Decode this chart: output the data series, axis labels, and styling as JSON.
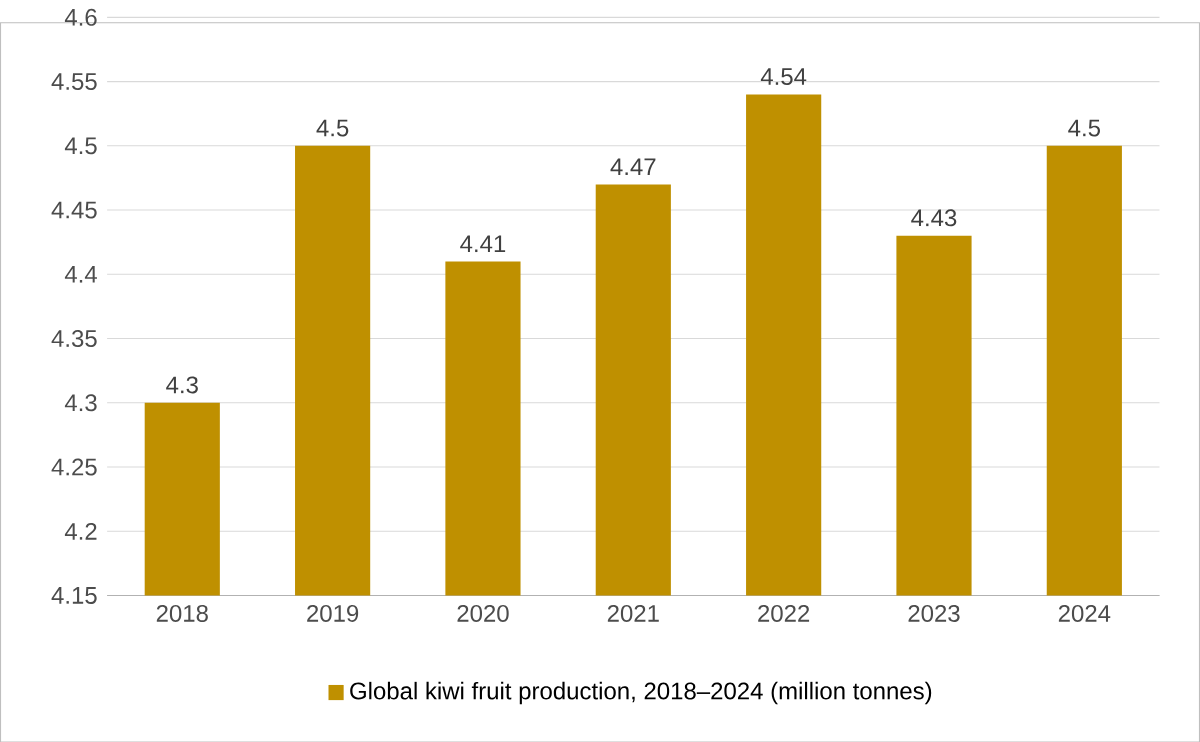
{
  "chart_data": {
    "type": "bar",
    "categories": [
      "2018",
      "2019",
      "2020",
      "2021",
      "2022",
      "2023",
      "2024"
    ],
    "series": [
      {
        "name": "Global kiwi fruit production, 2018–2024  (million tonnes)",
        "color": "#bf9000",
        "values": [
          4.3,
          4.5,
          4.41,
          4.47,
          4.54,
          4.43,
          4.5
        ]
      }
    ],
    "ylim": [
      4.15,
      4.6
    ],
    "yticks": [
      4.15,
      4.2,
      4.25,
      4.3,
      4.35,
      4.4,
      4.45,
      4.5,
      4.55,
      4.6
    ],
    "grid": "y",
    "legend": "bottom",
    "data_labels": true
  }
}
